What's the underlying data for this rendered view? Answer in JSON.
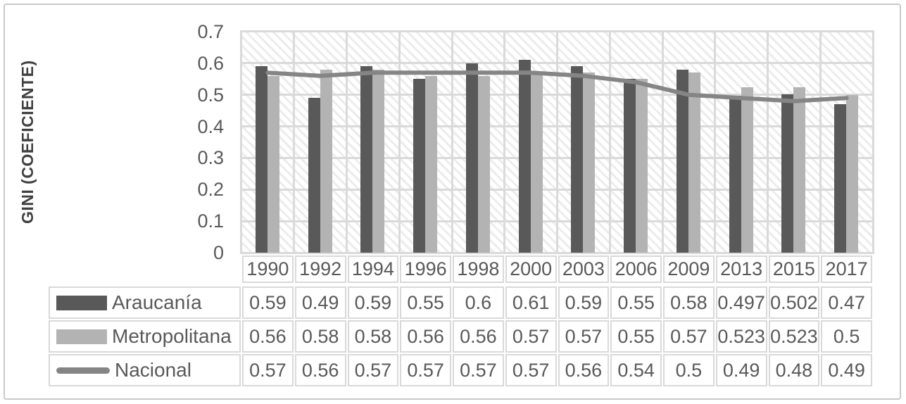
{
  "chart_data": {
    "type": "bar",
    "subtype": "bar-and-line-combo",
    "title": "",
    "ylabel": "GINI (COEFICIENTE)",
    "xlabel": "",
    "ylim": [
      0,
      0.7
    ],
    "ytick_step": 0.1,
    "yticks": [
      "0.7",
      "0.6",
      "0.5",
      "0.4",
      "0.3",
      "0.2",
      "0.1",
      "0"
    ],
    "grid": true,
    "plot_background": "light-diagonal-hatch",
    "legend_position": "data-table-left",
    "data_table_shown": true,
    "categories": [
      "1990",
      "1992",
      "1994",
      "1996",
      "1998",
      "2000",
      "2003",
      "2006",
      "2009",
      "2013",
      "2015",
      "2017"
    ],
    "series": [
      {
        "name": "Araucanía",
        "type": "bar",
        "color": "#595959",
        "values": [
          0.59,
          0.49,
          0.59,
          0.55,
          0.6,
          0.61,
          0.59,
          0.55,
          0.58,
          0.497,
          0.502,
          0.47
        ]
      },
      {
        "name": "Metropolitana",
        "type": "bar",
        "color": "#b3b3b3",
        "values": [
          0.56,
          0.58,
          0.58,
          0.56,
          0.56,
          0.57,
          0.57,
          0.55,
          0.57,
          0.523,
          0.523,
          0.5
        ]
      },
      {
        "name": "Nacional",
        "type": "line",
        "color": "#858585",
        "values": [
          0.57,
          0.56,
          0.57,
          0.57,
          0.57,
          0.57,
          0.56,
          0.54,
          0.5,
          0.49,
          0.48,
          0.49
        ]
      }
    ],
    "colors": {
      "grid_line": "#dadada",
      "table_border": "#d9d9d9",
      "frame_border": "#c9c9c9",
      "text": "#595959"
    }
  }
}
